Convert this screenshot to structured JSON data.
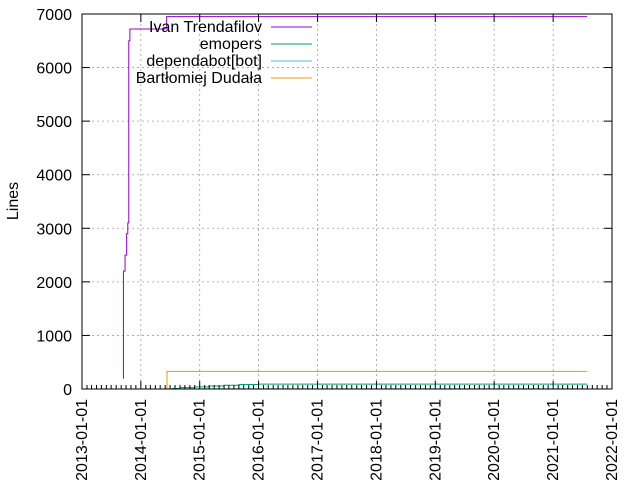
{
  "chart_data": {
    "type": "line",
    "title": "",
    "xlabel": "",
    "ylabel": "Lines",
    "x_axis_kind": "date",
    "xlim": [
      "2013-01-01",
      "2022-01-01"
    ],
    "ylim": [
      0,
      7000
    ],
    "x_ticks": [
      "2013-01-01",
      "2014-01-01",
      "2015-01-01",
      "2016-01-01",
      "2017-01-01",
      "2018-01-01",
      "2019-01-01",
      "2020-01-01",
      "2021-01-01",
      "2022-01-01"
    ],
    "y_ticks": [
      0,
      1000,
      2000,
      3000,
      4000,
      5000,
      6000,
      7000
    ],
    "grid": true,
    "legend_position": "top-left",
    "series": [
      {
        "name": "Ivan Trendafilov",
        "color": "#9400d3",
        "step": true,
        "points": [
          [
            "2013-09-12",
            200
          ],
          [
            "2013-09-15",
            2200
          ],
          [
            "2013-09-25",
            2500
          ],
          [
            "2013-10-05",
            2900
          ],
          [
            "2013-10-12",
            3100
          ],
          [
            "2013-10-18",
            6500
          ],
          [
            "2013-10-25",
            6720
          ],
          [
            "2014-06-01",
            6720
          ],
          [
            "2014-06-10",
            6950
          ],
          [
            "2021-07-30",
            6950
          ]
        ]
      },
      {
        "name": "emopers",
        "color": "#009e73",
        "step": true,
        "points": [
          [
            "2014-07-01",
            0
          ],
          [
            "2014-07-15",
            10
          ],
          [
            "2014-09-01",
            25
          ],
          [
            "2014-12-01",
            40
          ],
          [
            "2015-03-01",
            55
          ],
          [
            "2015-06-01",
            70
          ],
          [
            "2015-09-01",
            85
          ],
          [
            "2016-01-01",
            90
          ],
          [
            "2021-07-30",
            90
          ]
        ]
      },
      {
        "name": "dependabot[bot]",
        "color": "#56b4e9",
        "step": true,
        "points": [
          [
            "2014-06-10",
            2
          ],
          [
            "2021-07-30",
            2
          ]
        ]
      },
      {
        "name": "Bartłomiej Dudała",
        "color": "#e69f00",
        "step": true,
        "points": [
          [
            "2014-06-10",
            0
          ],
          [
            "2014-06-12",
            330
          ],
          [
            "2021-07-30",
            330
          ]
        ]
      }
    ]
  }
}
